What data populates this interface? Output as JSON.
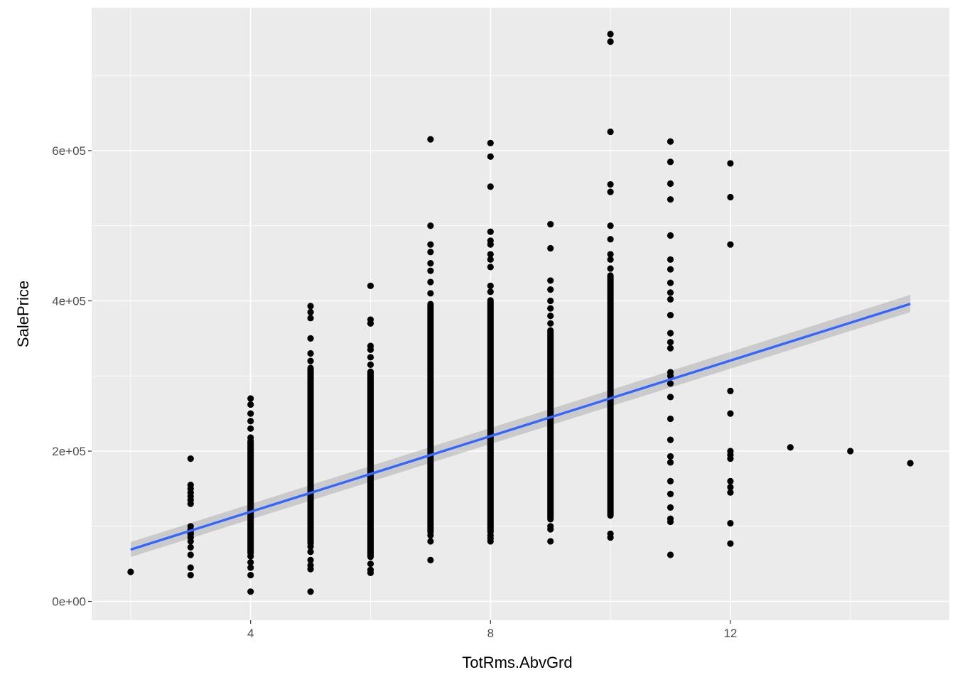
{
  "chart_data": {
    "type": "scatter",
    "title": "",
    "xlabel": "TotRms.AbvGrd",
    "ylabel": "SalePrice",
    "xlim": [
      1.35,
      15.65
    ],
    "ylim": [
      -25000,
      790000
    ],
    "x_ticks": [
      4,
      8,
      12
    ],
    "x_tick_labels": [
      "4",
      "8",
      "12"
    ],
    "y_ticks": [
      0,
      200000,
      400000,
      600000
    ],
    "y_tick_labels": [
      "0e+00",
      "2e+05",
      "4e+05",
      "6e+05"
    ],
    "grid": true,
    "legend": "none",
    "points": [
      {
        "x": 2,
        "y": [
          39300
        ]
      },
      {
        "x": 3,
        "y": [
          35000,
          45000,
          62000,
          72000,
          80000,
          85000,
          90000,
          95000,
          100000,
          130000,
          135000,
          140000,
          145000,
          150000,
          155000,
          190000
        ]
      },
      {
        "x": 4,
        "y": [
          13000,
          35000,
          45000,
          52000,
          60000,
          270000,
          262000,
          250000,
          240000,
          230000,
          218000
        ]
      },
      {
        "x": 5,
        "y": [
          13000,
          43000,
          48000,
          55000,
          66000,
          73000,
          393000,
          385000,
          377000,
          350000,
          330000,
          320000
        ]
      },
      {
        "x": 6,
        "y": [
          38000,
          42000,
          50000,
          420000,
          375000,
          370000,
          340000,
          335000,
          325000,
          315000
        ]
      },
      {
        "x": 7,
        "y": [
          55000,
          80000,
          88000,
          615000,
          500000,
          475000,
          465000,
          450000,
          440000,
          425000,
          410000
        ]
      },
      {
        "x": 8,
        "y": [
          80000,
          84000,
          88000,
          610000,
          592000,
          552000,
          492000,
          480000,
          475000,
          462000,
          455000,
          445000,
          420000,
          412000
        ]
      },
      {
        "x": 9,
        "y": [
          80000,
          96000,
          100000,
          502000,
          470000,
          427000,
          415000,
          400000,
          390000,
          380000,
          370000
        ]
      },
      {
        "x": 10,
        "y": [
          85000,
          90000,
          755000,
          745000,
          625000,
          555000,
          545000,
          500000,
          482000,
          462000,
          455000,
          443000
        ]
      },
      {
        "x": 11,
        "y": [
          62000,
          106000,
          110000,
          125000,
          143000,
          160000,
          185000,
          193000,
          215000,
          243000,
          272000,
          290000,
          300000,
          305000,
          337000,
          345000,
          357000,
          381000,
          402000,
          411000,
          424000,
          442000,
          455000,
          487000,
          535000,
          556000,
          585000,
          612000
        ]
      },
      {
        "x": 12,
        "y": [
          77000,
          104000,
          145000,
          152000,
          160000,
          190000,
          195000,
          200000,
          250000,
          280000,
          475000,
          538000,
          583000
        ]
      },
      {
        "x": 13,
        "y": [
          205000
        ]
      },
      {
        "x": 14,
        "y": [
          200000
        ]
      },
      {
        "x": 15,
        "y": [
          184000
        ]
      }
    ],
    "dense_ranges": [
      {
        "x": 3,
        "from": 85000,
        "to": 100000
      },
      {
        "x": 4,
        "from": 60000,
        "to": 218000
      },
      {
        "x": 5,
        "from": 73000,
        "to": 315000
      },
      {
        "x": 6,
        "from": 55000,
        "to": 310000
      },
      {
        "x": 7,
        "from": 88000,
        "to": 400000
      },
      {
        "x": 8,
        "from": 88000,
        "to": 405000
      },
      {
        "x": 9,
        "from": 105000,
        "to": 365000
      },
      {
        "x": 10,
        "from": 110000,
        "to": 438000
      }
    ],
    "smooth": {
      "method": "lm",
      "x": [
        2,
        15
      ],
      "y": [
        69000,
        396000
      ],
      "se_low": [
        59000,
        385000
      ],
      "se_high": [
        79000,
        408000
      ],
      "line_color": "#3366FF",
      "band_color": "#999999"
    },
    "point_color": "#000000",
    "panel_color": "#EBEBEB",
    "grid_color": "#FFFFFF"
  }
}
